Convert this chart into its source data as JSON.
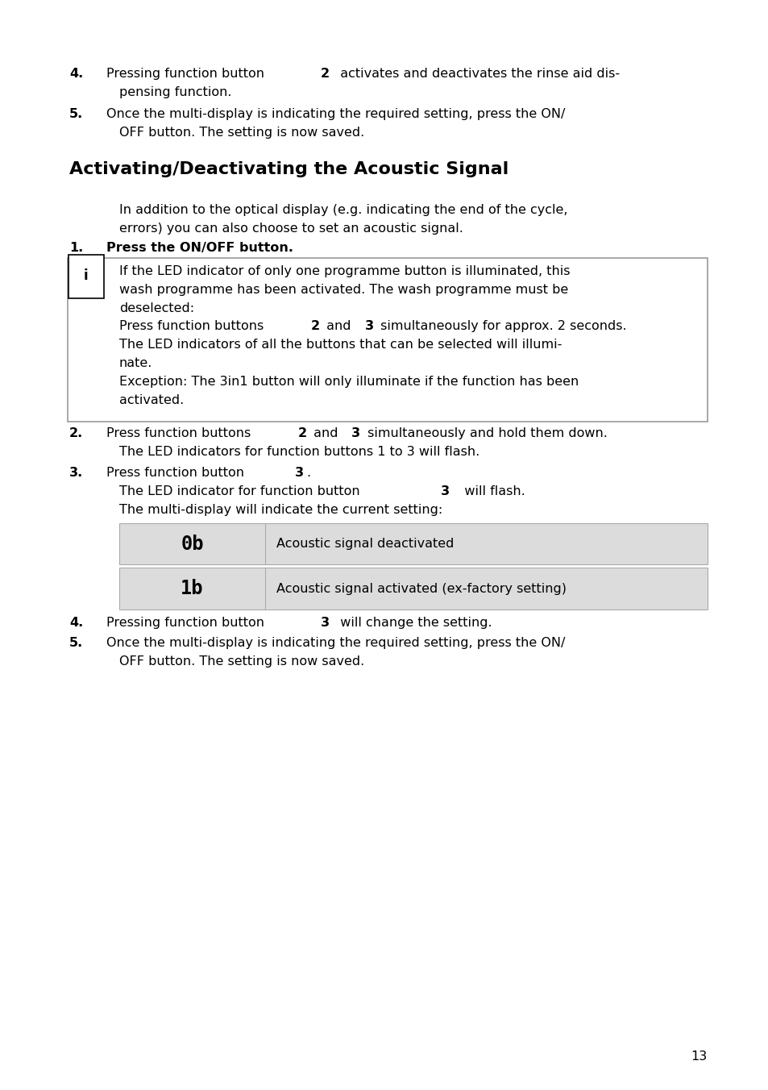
{
  "bg_color": "#ffffff",
  "text_color": "#000000",
  "page_number": "13",
  "font_size_body": 11.5,
  "font_size_heading": 16,
  "table_rows": [
    {
      "symbol": "0b",
      "description": "Acoustic signal deactivated",
      "bg": "#dcdcdc"
    },
    {
      "symbol": "1b",
      "description": "Acoustic signal activated (ex-factory setting)",
      "bg": "#dcdcdc"
    }
  ]
}
